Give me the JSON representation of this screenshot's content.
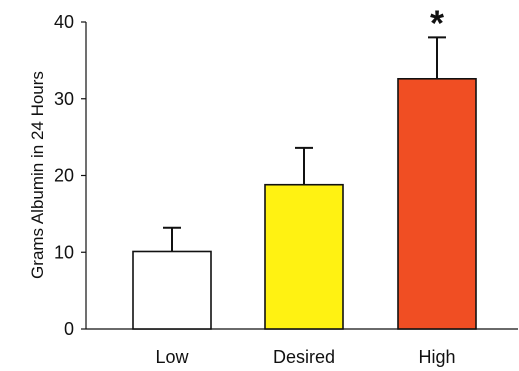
{
  "chart_data": {
    "type": "bar",
    "title": "",
    "xlabel": "",
    "ylabel": "Grams Albumin in 24 Hours",
    "ylim": [
      0,
      40
    ],
    "yticks": [
      0,
      10,
      20,
      30,
      40
    ],
    "categories": [
      "Low",
      "Desired",
      "High"
    ],
    "values": [
      10.1,
      18.8,
      32.6
    ],
    "error_upper": [
      3.1,
      4.8,
      5.4
    ],
    "colors": [
      "#ffffff",
      "#fff212",
      "#f04e23"
    ],
    "annotations": [
      {
        "category": "High",
        "text": "*"
      }
    ],
    "grid": false,
    "legend": "none"
  }
}
